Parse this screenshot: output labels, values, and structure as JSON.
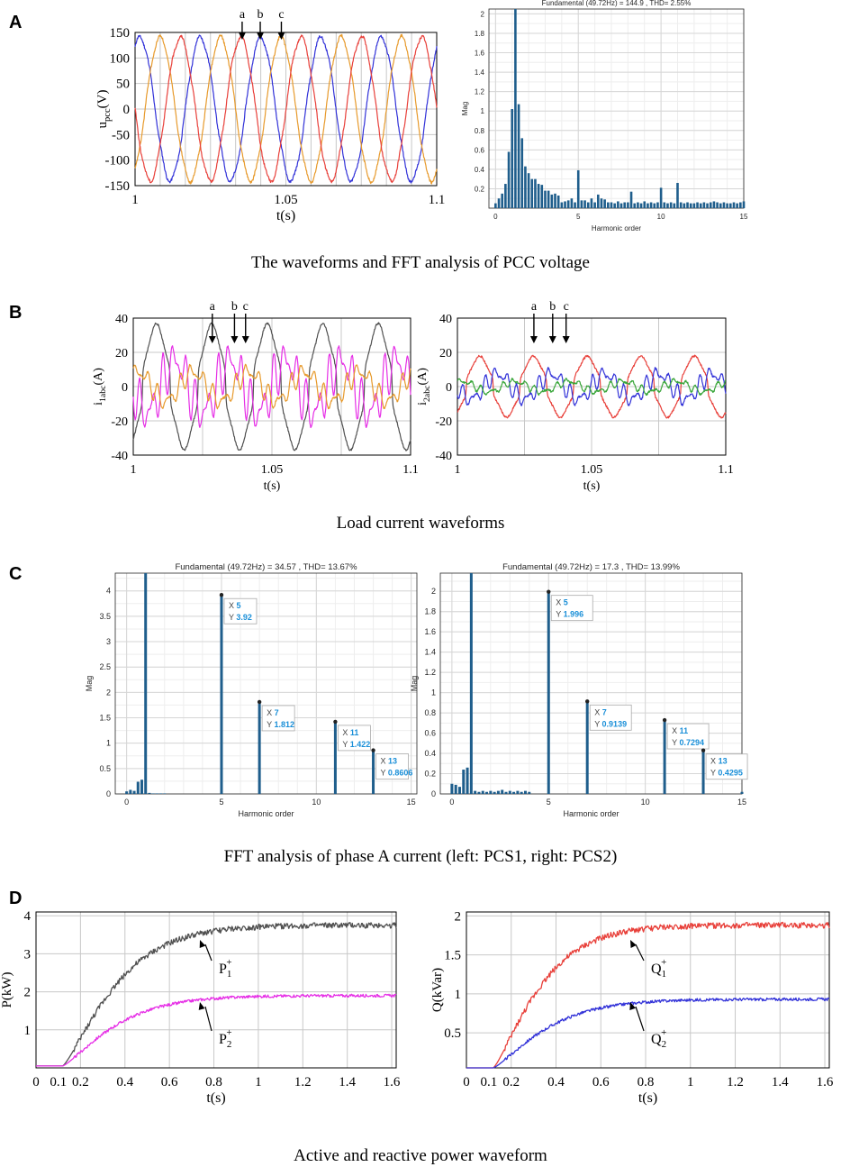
{
  "panels": {
    "A": {
      "letter": "A",
      "caption": "The waveforms and FFT analysis of PCC voltage"
    },
    "B": {
      "letter": "B",
      "caption": "Load current waveforms"
    },
    "C": {
      "letter": "C",
      "caption": "FFT analysis of phase A current (left: PCS1, right: PCS2)"
    },
    "D": {
      "letter": "D",
      "caption": "Active and reactive power waveform"
    }
  },
  "colors": {
    "red": "#e8403a",
    "blue": "#3232d8",
    "orange": "#e79a2c",
    "gray": "#505050",
    "magenta": "#e62ee6",
    "green": "#3aa63a",
    "bar": "#1f5e8c",
    "annot_blue": "#1a8fd8"
  },
  "chart_data": [
    {
      "id": "A1",
      "type": "line",
      "title": "",
      "xlabel": "t(s)",
      "ylabel_main": "u",
      "ylabel_sub": "pcc",
      "ylabel_unit": "(V)",
      "xlim": [
        1,
        1.1
      ],
      "ylim": [
        -150,
        150
      ],
      "xticks": [
        "1",
        "1.05",
        "1.1"
      ],
      "yticks": [
        "150",
        "100",
        "50",
        "0",
        "-50",
        "-100",
        "-150"
      ],
      "freq_hz": 50,
      "series": [
        {
          "name": "phase a",
          "color": "blue",
          "amplitude": 140,
          "phase_deg": 0
        },
        {
          "name": "phase b",
          "color": "orange",
          "amplitude": 140,
          "phase_deg": -120
        },
        {
          "name": "phase c",
          "color": "red",
          "amplitude": 140,
          "phase_deg": 120
        }
      ],
      "arrows": [
        {
          "label": "a",
          "t": 1.0355
        },
        {
          "label": "b",
          "t": 1.0415
        },
        {
          "label": "c",
          "t": 1.0485
        }
      ]
    },
    {
      "id": "A2",
      "type": "bar",
      "title": "Fundamental (49.72Hz) = 144.9 , THD= 2.55%",
      "xlabel": "Harmonic order",
      "ylabel": "Mag",
      "xlim": [
        -0.4,
        15
      ],
      "ylim": [
        0,
        2.05
      ],
      "xticks": [
        "0",
        "5",
        "10",
        "15"
      ],
      "yticks": [
        "2",
        "1.8",
        "1.6",
        "1.4",
        "1.2",
        "1",
        "0.8",
        "0.6",
        "0.4",
        "0.2"
      ],
      "x": [
        0,
        0.2,
        0.4,
        0.6,
        0.8,
        1.0,
        1.2,
        1.4,
        1.6,
        1.8,
        2.0,
        2.2,
        2.4,
        2.6,
        2.8,
        3.0,
        3.2,
        3.4,
        3.6,
        3.8,
        4.0,
        4.2,
        4.4,
        4.6,
        4.8,
        5.0,
        5.2,
        5.4,
        5.6,
        5.8,
        6.0,
        6.2,
        6.4,
        6.6,
        6.8,
        7.0,
        7.2,
        7.4,
        7.6,
        7.8,
        8.0,
        8.2,
        8.4,
        8.6,
        8.8,
        9.0,
        9.2,
        9.4,
        9.6,
        9.8,
        10.0,
        10.2,
        10.4,
        10.6,
        10.8,
        11.0,
        11.2,
        11.4,
        11.6,
        11.8,
        12.0,
        12.2,
        12.4,
        12.6,
        12.8,
        13.0,
        13.2,
        13.4,
        13.6,
        13.8,
        14.0,
        14.2,
        14.4,
        14.6,
        14.8,
        15.0
      ],
      "values": [
        0.05,
        0.1,
        0.15,
        0.25,
        0.58,
        1.02,
        2.05,
        1.07,
        0.72,
        0.43,
        0.36,
        0.3,
        0.3,
        0.25,
        0.24,
        0.18,
        0.18,
        0.14,
        0.15,
        0.13,
        0.06,
        0.07,
        0.08,
        0.1,
        0.06,
        0.39,
        0.08,
        0.08,
        0.06,
        0.1,
        0.06,
        0.14,
        0.1,
        0.09,
        0.06,
        0.06,
        0.05,
        0.07,
        0.05,
        0.06,
        0.06,
        0.17,
        0.05,
        0.06,
        0.05,
        0.07,
        0.05,
        0.06,
        0.05,
        0.06,
        0.21,
        0.06,
        0.05,
        0.06,
        0.05,
        0.26,
        0.06,
        0.05,
        0.06,
        0.05,
        0.05,
        0.06,
        0.05,
        0.06,
        0.05,
        0.06,
        0.07,
        0.06,
        0.05,
        0.06,
        0.05,
        0.05,
        0.06,
        0.05,
        0.06,
        0.07
      ]
    },
    {
      "id": "B1",
      "type": "line",
      "xlabel": "t(s)",
      "ylabel_main": "i",
      "ylabel_sub": "1abc",
      "ylabel_unit": "(A)",
      "xlim": [
        1,
        1.1
      ],
      "ylim": [
        -40,
        40
      ],
      "xticks": [
        "1",
        "1.05",
        "1.1"
      ],
      "yticks": [
        "40",
        "20",
        "0",
        "-20",
        "-40"
      ],
      "series": [
        {
          "name": "phase a",
          "color": "gray",
          "amplitude": 33
        },
        {
          "name": "phase b",
          "color": "magenta",
          "amplitude": 27
        },
        {
          "name": "phase c",
          "color": "orange",
          "amplitude": 14
        }
      ],
      "arrows": [
        {
          "label": "a",
          "t": 1.0285
        },
        {
          "label": "b",
          "t": 1.0365
        },
        {
          "label": "c",
          "t": 1.0405
        }
      ]
    },
    {
      "id": "B2",
      "type": "line",
      "xlabel": "t(s)",
      "ylabel_main": "i",
      "ylabel_sub": "2abc",
      "ylabel_unit": "(A)",
      "xlim": [
        1,
        1.1
      ],
      "ylim": [
        -40,
        40
      ],
      "xticks": [
        "1",
        "1.05",
        "1.1"
      ],
      "yticks": [
        "40",
        "20",
        "0",
        "-20",
        "-40"
      ],
      "series": [
        {
          "name": "phase a",
          "color": "red",
          "amplitude": 16
        },
        {
          "name": "phase b",
          "color": "blue",
          "amplitude": 12
        },
        {
          "name": "phase c",
          "color": "green",
          "amplitude": 5
        }
      ],
      "arrows": [
        {
          "label": "a",
          "t": 1.0285
        },
        {
          "label": "b",
          "t": 1.0355
        },
        {
          "label": "c",
          "t": 1.0405
        }
      ]
    },
    {
      "id": "C1",
      "type": "bar",
      "title": "Fundamental (49.72Hz) = 34.57 , THD= 13.67%",
      "xlabel": "Harmonic order",
      "ylabel": "Mag",
      "xlim": [
        -0.6,
        15.3
      ],
      "ylim": [
        0,
        4.35
      ],
      "xticks": [
        "0",
        "5",
        "10",
        "15"
      ],
      "yticks": [
        "4",
        "3.5",
        "3",
        "2.5",
        "2",
        "1.5",
        "1",
        "0.5",
        "0"
      ],
      "x": [
        0,
        0.2,
        0.4,
        0.6,
        0.8,
        1.0,
        1.2,
        1.4,
        1.6,
        1.8,
        2.0,
        5.0,
        7.0,
        11.0,
        13.0
      ],
      "values": [
        0.05,
        0.08,
        0.06,
        0.24,
        0.28,
        4.35,
        0.02,
        0.01,
        0.01,
        0.01,
        0.01,
        3.92,
        1.812,
        1.422,
        0.8606
      ],
      "datatips": [
        {
          "x": "5",
          "y": "3.92"
        },
        {
          "x": "7",
          "y": "1.812"
        },
        {
          "x": "11",
          "y": "1.422"
        },
        {
          "x": "13",
          "y": "0.8606"
        }
      ]
    },
    {
      "id": "C2",
      "type": "bar",
      "title": "Fundamental (49.72Hz) = 17.3 , THD= 13.99%",
      "xlabel": "Harmonic order",
      "ylabel": "Mag",
      "xlim": [
        -0.6,
        15
      ],
      "ylim": [
        0,
        2.18
      ],
      "xticks": [
        "0",
        "5",
        "10",
        "15"
      ],
      "yticks": [
        "2",
        "1.8",
        "1.6",
        "1.4",
        "1.2",
        "1",
        "0.8",
        "0.6",
        "0.4",
        "0.2",
        "0"
      ],
      "x": [
        0,
        0.2,
        0.4,
        0.6,
        0.8,
        1.0,
        1.2,
        1.4,
        1.6,
        1.8,
        2.0,
        2.2,
        2.4,
        2.6,
        2.8,
        3.0,
        3.2,
        3.4,
        3.6,
        3.8,
        4.0,
        5.0,
        7.0,
        11.0,
        13.0,
        15.0
      ],
      "values": [
        0.1,
        0.09,
        0.07,
        0.24,
        0.26,
        2.18,
        0.03,
        0.02,
        0.03,
        0.02,
        0.03,
        0.02,
        0.03,
        0.04,
        0.02,
        0.03,
        0.02,
        0.03,
        0.02,
        0.03,
        0.02,
        1.996,
        0.9139,
        0.7294,
        0.4295,
        0.02
      ],
      "datatips": [
        {
          "x": "5",
          "y": "1.996"
        },
        {
          "x": "7",
          "y": "0.9139"
        },
        {
          "x": "11",
          "y": "0.7294"
        },
        {
          "x": "13",
          "y": "0.4295"
        }
      ]
    },
    {
      "id": "D1",
      "type": "line",
      "xlabel": "t(s)",
      "ylabel": "P(kW)",
      "xlim": [
        0,
        1.62
      ],
      "ylim": [
        0,
        4.1
      ],
      "xticks": [
        "0",
        "0.1",
        "0.2",
        "0.4",
        "0.6",
        "0.8",
        "1",
        "1.2",
        "1.4",
        "1.6"
      ],
      "xtick_values": [
        0,
        0.1,
        0.2,
        0.4,
        0.6,
        0.8,
        1.0,
        1.2,
        1.4,
        1.6
      ],
      "yticks": [
        "4",
        "3",
        "2",
        "1"
      ],
      "series": [
        {
          "name": "P1+",
          "color": "gray",
          "final": 3.75,
          "t0": 0.12,
          "tau": 0.27
        },
        {
          "name": "P2+",
          "color": "magenta",
          "final": 1.9,
          "t0": 0.12,
          "tau": 0.27
        }
      ],
      "labels": [
        {
          "main": "P",
          "sub": "1",
          "sup": "+"
        },
        {
          "main": "P",
          "sub": "2",
          "sup": "+"
        }
      ]
    },
    {
      "id": "D2",
      "type": "line",
      "xlabel": "t(s)",
      "ylabel": "Q(kVar)",
      "xlim": [
        0,
        1.62
      ],
      "ylim": [
        0.05,
        2.05
      ],
      "xticks": [
        "0",
        "0.1",
        "0.2",
        "0.4",
        "0.6",
        "0.8",
        "1",
        "1.2",
        "1.4",
        "1.6"
      ],
      "xtick_values": [
        0,
        0.1,
        0.2,
        0.4,
        0.6,
        0.8,
        1.0,
        1.2,
        1.4,
        1.6
      ],
      "yticks": [
        "2",
        "1.5",
        "1",
        "0.5"
      ],
      "series": [
        {
          "name": "Q1+",
          "color": "red",
          "final": 1.88,
          "t0": 0.12,
          "tau": 0.24
        },
        {
          "name": "Q2+",
          "color": "blue",
          "final": 0.93,
          "t0": 0.12,
          "tau": 0.27
        }
      ],
      "labels": [
        {
          "main": "Q",
          "sub": "1",
          "sup": "+"
        },
        {
          "main": "Q",
          "sub": "2",
          "sup": "+"
        }
      ]
    }
  ]
}
